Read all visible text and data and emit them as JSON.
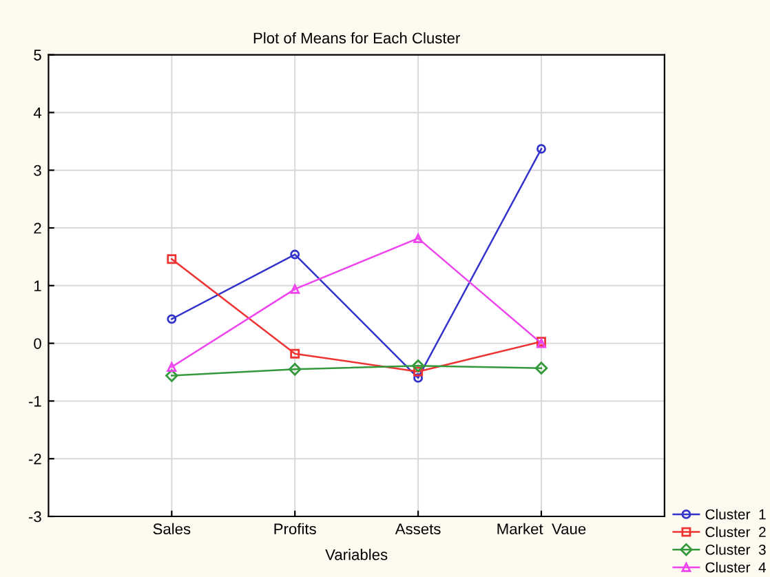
{
  "chart_data": {
    "type": "line",
    "title": "Plot of Means for Each Cluster",
    "xlabel": "Variables",
    "categories": [
      "Sales",
      "Profits",
      "Assets",
      "Market  Vaue"
    ],
    "series": [
      {
        "name": "Cluster  1",
        "color": "#3333cc",
        "values": [
          0.42,
          1.54,
          -0.6,
          3.37
        ],
        "marker": "circle"
      },
      {
        "name": "Cluster  2",
        "color": "#ee3333",
        "values": [
          1.46,
          -0.18,
          -0.49,
          0.03
        ],
        "marker": "square"
      },
      {
        "name": "Cluster  3",
        "color": "#33993a",
        "values": [
          -0.56,
          -0.45,
          -0.39,
          -0.43
        ],
        "marker": "diamond"
      },
      {
        "name": "Cluster  4",
        "color": "#ee44ee",
        "values": [
          -0.41,
          0.94,
          1.82,
          0.0
        ],
        "marker": "triangle"
      }
    ],
    "ylim": [
      -3,
      5
    ],
    "yticks": [
      -3,
      -2,
      -1,
      0,
      1,
      2,
      3,
      4,
      5
    ],
    "grid": true,
    "legend": "bottom right",
    "line_style": "solid"
  }
}
